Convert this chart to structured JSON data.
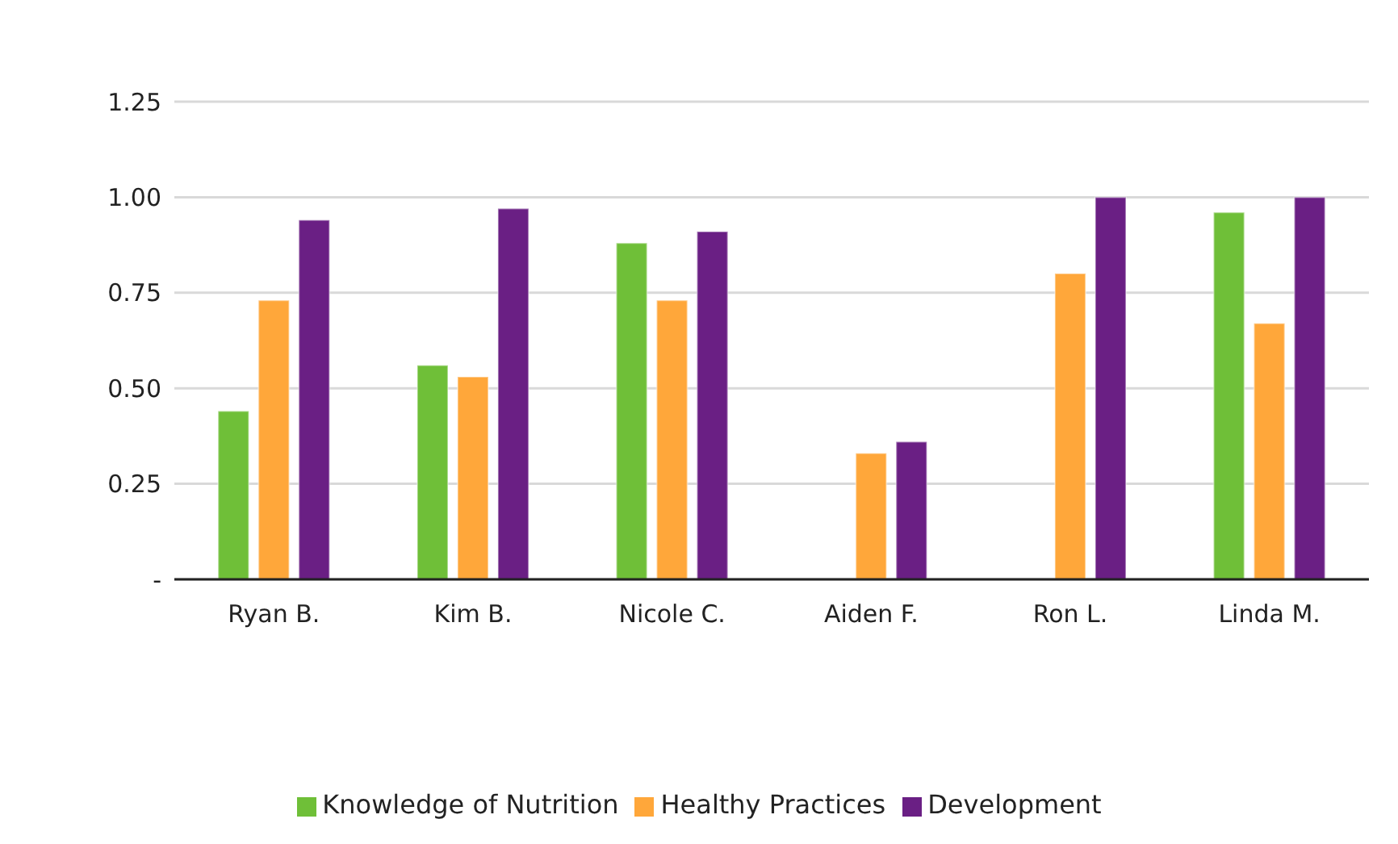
{
  "chart_data": {
    "type": "bar",
    "categories": [
      "Ryan B.",
      "Kim B.",
      "Nicole C.",
      "Aiden F.",
      "Ron L.",
      "Linda M."
    ],
    "series": [
      {
        "name": "Knowledge of Nutrition",
        "color": "#6fbf38",
        "values": [
          0.44,
          0.56,
          0.88,
          0,
          0,
          0.96
        ]
      },
      {
        "name": "Healthy Practices",
        "color": "#ffa73a",
        "values": [
          0.73,
          0.53,
          0.73,
          0.33,
          0.8,
          0.67
        ]
      },
      {
        "name": "Development",
        "color": "#6a1f84",
        "values": [
          0.94,
          0.97,
          0.91,
          0.36,
          1.0,
          1.0
        ]
      }
    ],
    "ylim": [
      0,
      1.25
    ],
    "yticks": [
      {
        "value": 0,
        "label": "-"
      },
      {
        "value": 0.25,
        "label": "0.25"
      },
      {
        "value": 0.5,
        "label": "0.50"
      },
      {
        "value": 0.75,
        "label": "0.75"
      },
      {
        "value": 1,
        "label": "1.00"
      },
      {
        "value": 1.25,
        "label": "1.25"
      }
    ],
    "grid": "y",
    "legend": "bottom"
  }
}
